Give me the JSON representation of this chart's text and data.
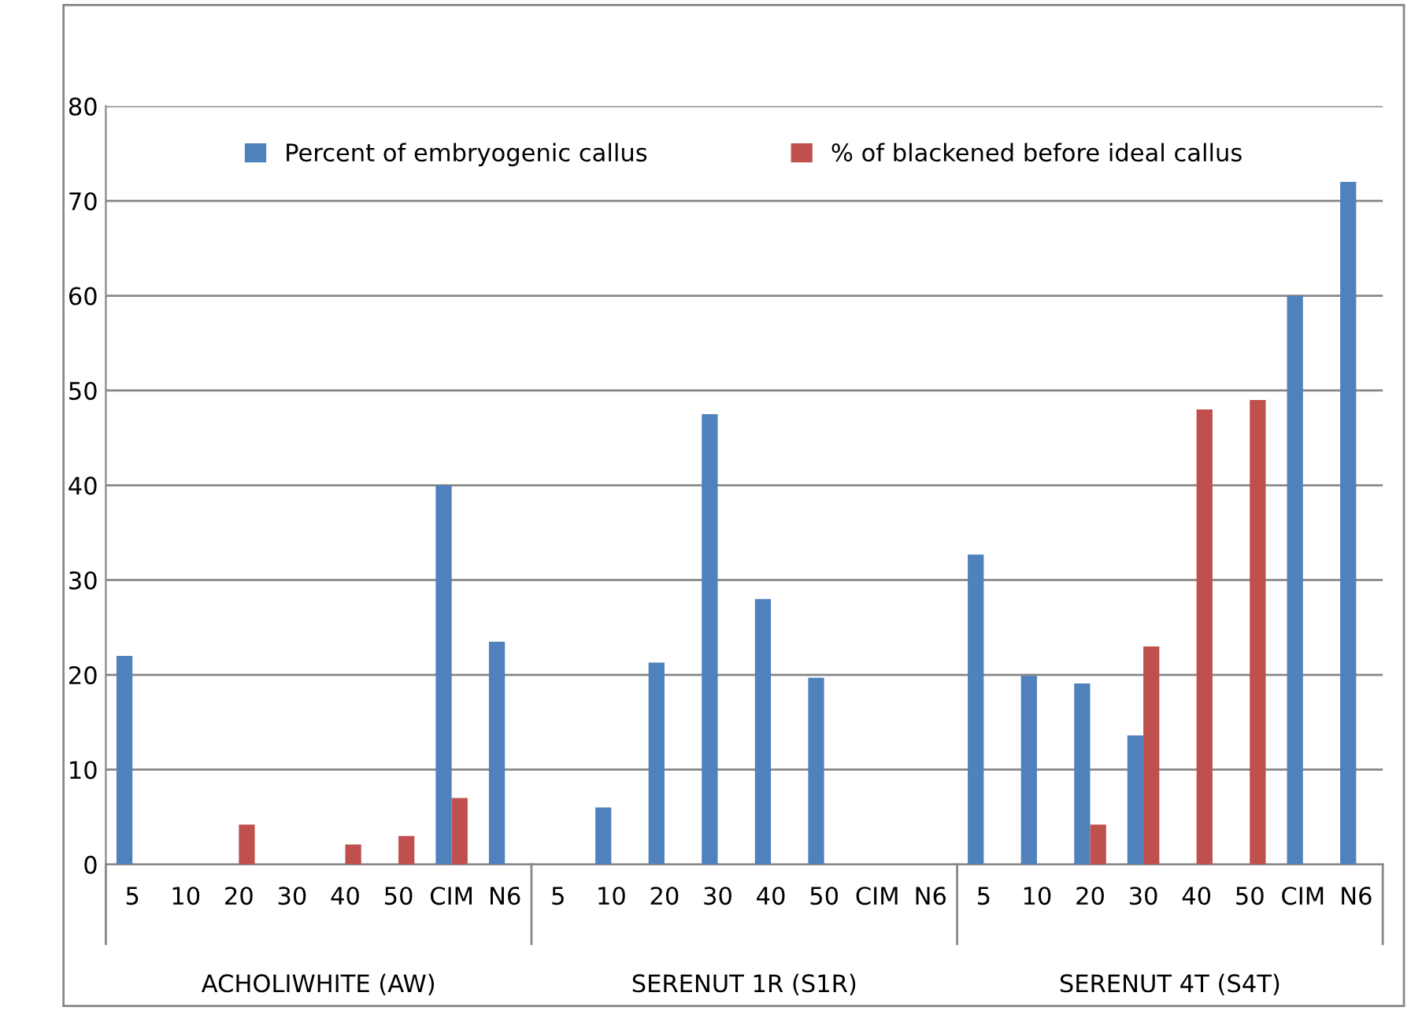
{
  "chart_data": {
    "type": "bar",
    "categories": [
      "5",
      "10",
      "20",
      "30",
      "40",
      "50",
      "CIM",
      "N6",
      "5",
      "10",
      "20",
      "30",
      "40",
      "50",
      "CIM",
      "N6",
      "5",
      "10",
      "20",
      "30",
      "40",
      "50",
      "CIM",
      "N6"
    ],
    "series": [
      {
        "name": "Percent of embryogenic callus",
        "color": "#4f81bd",
        "values": [
          22,
          null,
          null,
          null,
          null,
          null,
          40,
          23.5,
          null,
          6,
          21.3,
          47.5,
          28,
          19.7,
          null,
          null,
          32.7,
          19.9,
          19.1,
          13.6,
          null,
          null,
          60,
          72
        ]
      },
      {
        "name": "% of blackened before ideal callus",
        "color": "#c0504d",
        "values": [
          null,
          null,
          4.2,
          null,
          2.1,
          3,
          7,
          null,
          null,
          null,
          null,
          null,
          null,
          null,
          null,
          null,
          null,
          null,
          4.2,
          23,
          48,
          49,
          null,
          null
        ]
      }
    ],
    "annotations": [
      "ACHOLIWHITE (AW)",
      "SERENUT 1R (S1R)",
      "SERENUT 4T (S4T)"
    ],
    "ylim": [
      0,
      80
    ],
    "yticks": [
      0,
      10,
      20,
      30,
      40,
      50,
      60,
      70,
      80
    ],
    "grid": "y",
    "legend": "top"
  }
}
